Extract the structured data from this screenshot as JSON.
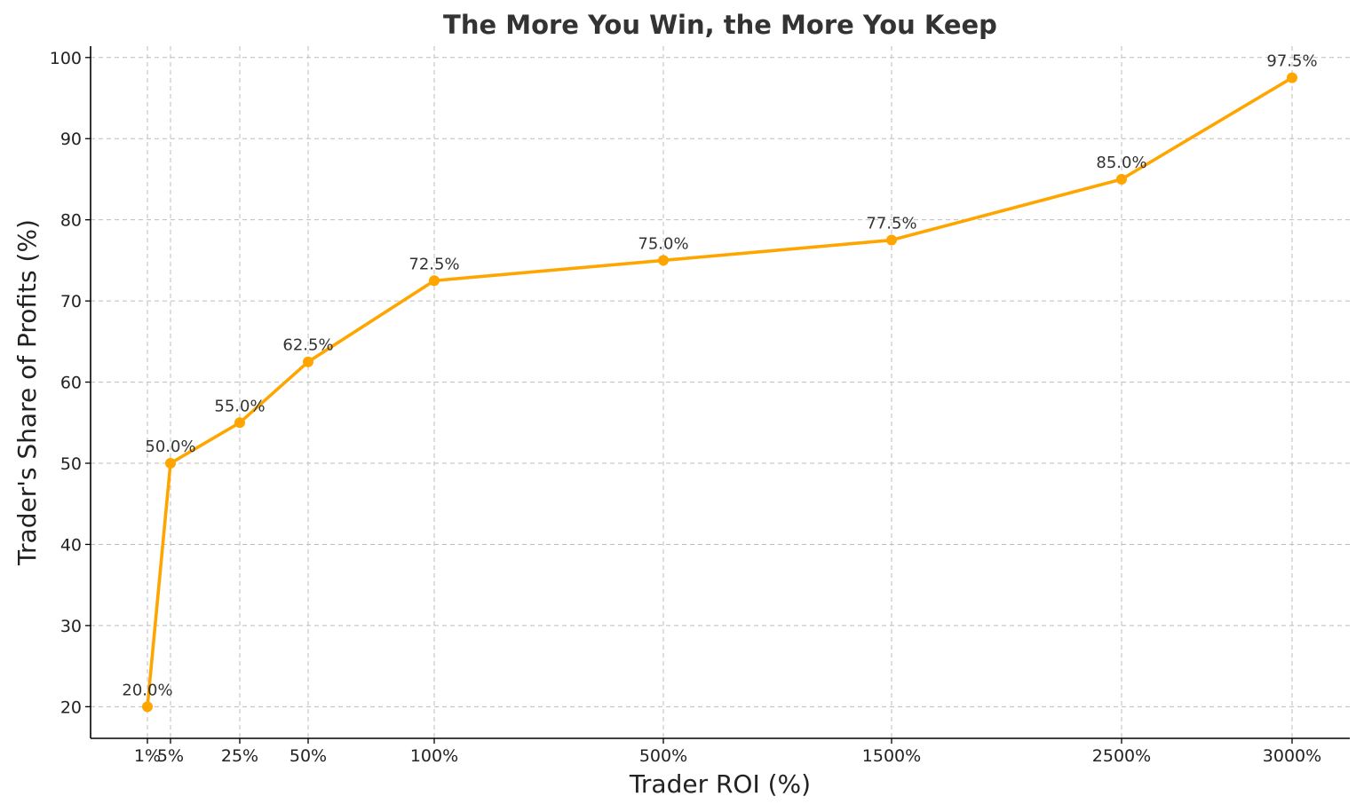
{
  "chart_data": {
    "type": "line",
    "title": "The More You Win, the More You Keep",
    "xlabel": "Trader ROI (%)",
    "ylabel": "Trader's Share of Profits (%)",
    "x_scale": "nonuniform",
    "categories": [
      "1%",
      "5%",
      "25%",
      "50%",
      "100%",
      "500%",
      "1500%",
      "2500%",
      "3000%"
    ],
    "x": [
      1,
      5,
      25,
      50,
      100,
      500,
      1500,
      2500,
      3000
    ],
    "series": [
      {
        "values": [
          20.0,
          50.0,
          55.0,
          62.5,
          72.5,
          75.0,
          77.5,
          85.0,
          97.5
        ],
        "data_labels": [
          "20.0%",
          "50.0%",
          "55.0%",
          "62.5%",
          "72.5%",
          "75.0%",
          "77.5%",
          "85.0%",
          "97.5%"
        ],
        "color": "#FFA500"
      }
    ],
    "yticks": [
      20,
      30,
      40,
      50,
      60,
      70,
      80,
      90,
      100
    ],
    "ylim": [
      16.1,
      101.4
    ],
    "grid": true,
    "legend": "none"
  }
}
